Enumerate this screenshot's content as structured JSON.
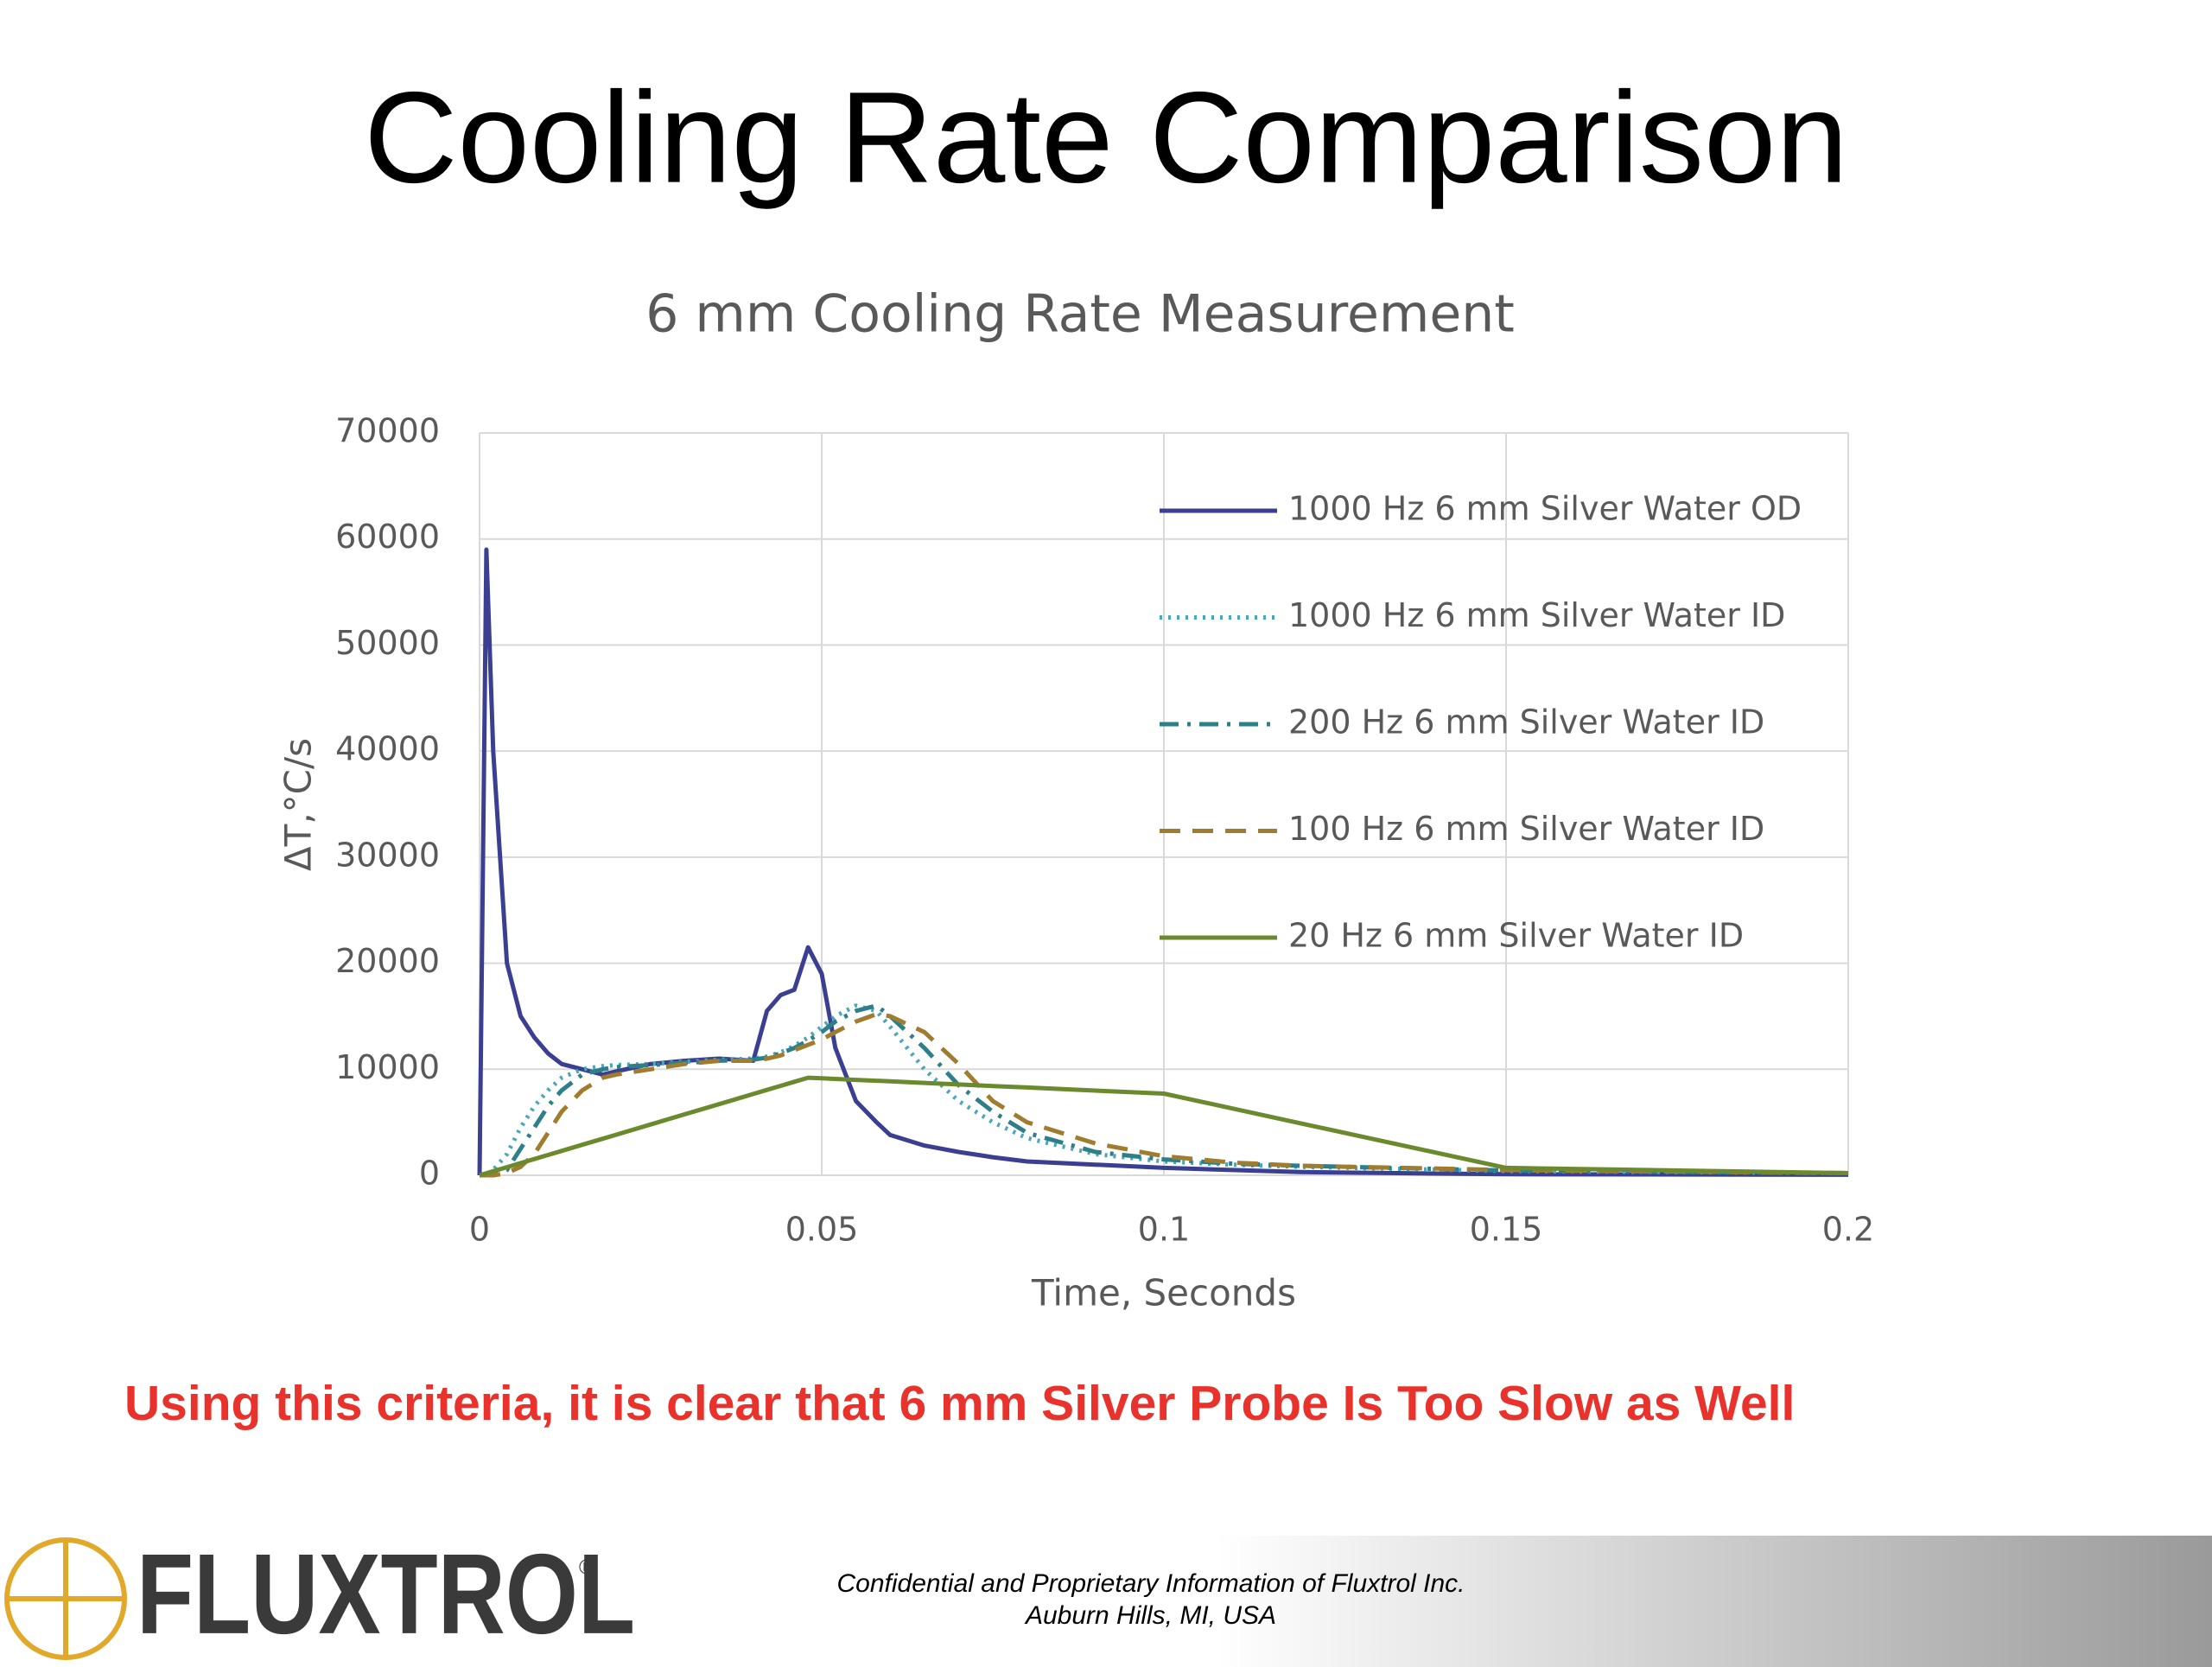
{
  "slide_title": "Cooling Rate Comparison",
  "chart_data": {
    "type": "line",
    "title": "6 mm Cooling Rate Measurement",
    "xlabel": "Time, Seconds",
    "ylabel": "ΔT,°C/s",
    "x": [
      0,
      0.001,
      0.002,
      0.004,
      0.006,
      0.008,
      0.01,
      0.012,
      0.015,
      0.018,
      0.02,
      0.025,
      0.03,
      0.035,
      0.04,
      0.042,
      0.044,
      0.046,
      0.048,
      0.05,
      0.052,
      0.055,
      0.058,
      0.06,
      0.065,
      0.07,
      0.075,
      0.08,
      0.09,
      0.1,
      0.11,
      0.12,
      0.15,
      0.2
    ],
    "series": [
      {
        "name": "1000 Hz 6 mm Silver Water OD",
        "color": "#3b3f91",
        "linestyle": "solid",
        "values": [
          0,
          59000,
          40000,
          20000,
          15000,
          13000,
          11500,
          10500,
          10000,
          9500,
          9800,
          10500,
          10800,
          11000,
          10800,
          15500,
          17000,
          17500,
          21500,
          19000,
          12000,
          7000,
          5000,
          3800,
          2800,
          2200,
          1700,
          1300,
          1000,
          700,
          500,
          300,
          100,
          50
        ]
      },
      {
        "name": "1000 Hz 6 mm Silver Water ID",
        "color": "#4aa6b8",
        "linestyle": "dotted",
        "values": [
          0,
          0,
          500,
          2000,
          4500,
          6500,
          8000,
          9200,
          10000,
          10300,
          10400,
          10500,
          10700,
          10900,
          11000,
          11200,
          11600,
          12200,
          13000,
          14000,
          15000,
          16000,
          15500,
          14000,
          10000,
          7000,
          5000,
          3500,
          2000,
          1300,
          1000,
          800,
          400,
          200
        ]
      },
      {
        "name": "200 Hz 6 mm Silver Water ID",
        "color": "#2e7f8a",
        "linestyle": "dashdot",
        "values": [
          0,
          0,
          0,
          500,
          2500,
          4500,
          6500,
          8000,
          9500,
          10000,
          10200,
          10400,
          10600,
          10800,
          10900,
          11100,
          11500,
          12000,
          12700,
          13500,
          14500,
          15500,
          16000,
          15000,
          12000,
          8500,
          6000,
          4000,
          2200,
          1500,
          1100,
          900,
          450,
          200
        ]
      },
      {
        "name": "100 Hz 6 mm Silver Water ID",
        "color": "#a07c2e",
        "linestyle": "dashed",
        "values": [
          0,
          0,
          0,
          200,
          800,
          2000,
          4000,
          6000,
          8000,
          9200,
          9500,
          10000,
          10500,
          10800,
          10800,
          11000,
          11300,
          11800,
          12300,
          12800,
          13500,
          14500,
          15200,
          15000,
          13500,
          10500,
          7000,
          5000,
          3000,
          1800,
          1200,
          900,
          500,
          200
        ]
      },
      {
        "name": "20 Hz 6 mm Silver Water ID",
        "color": "#6b8a2e",
        "linestyle": "solid",
        "values": [
          0,
          192,
          383,
          767,
          1150,
          1533,
          1917,
          2300,
          2875,
          3450,
          3833,
          4792,
          5750,
          6708,
          7667,
          8050,
          8433,
          8817,
          9200,
          9142,
          9085,
          9000,
          8912,
          8854,
          8710,
          8565,
          8421,
          8277,
          7988,
          7700,
          6300,
          4900,
          700,
          200
        ]
      }
    ],
    "xlim": [
      0,
      0.2
    ],
    "ylim": [
      0,
      70000
    ],
    "xticks": [
      0,
      0.05,
      0.1,
      0.15,
      0.2
    ],
    "yticks": [
      0,
      10000,
      20000,
      30000,
      40000,
      50000,
      60000,
      70000
    ],
    "grid": true,
    "legend": "upper right"
  },
  "caption": "Using this criteria, it is clear that 6 mm Silver Probe Is Too Slow as Well",
  "logo": {
    "text": "FLUXTROL",
    "mark": "®"
  },
  "footer": {
    "line1": "Confidential and Proprietary Information of Fluxtrol Inc.",
    "line2": "Auburn Hills, MI, USA"
  }
}
